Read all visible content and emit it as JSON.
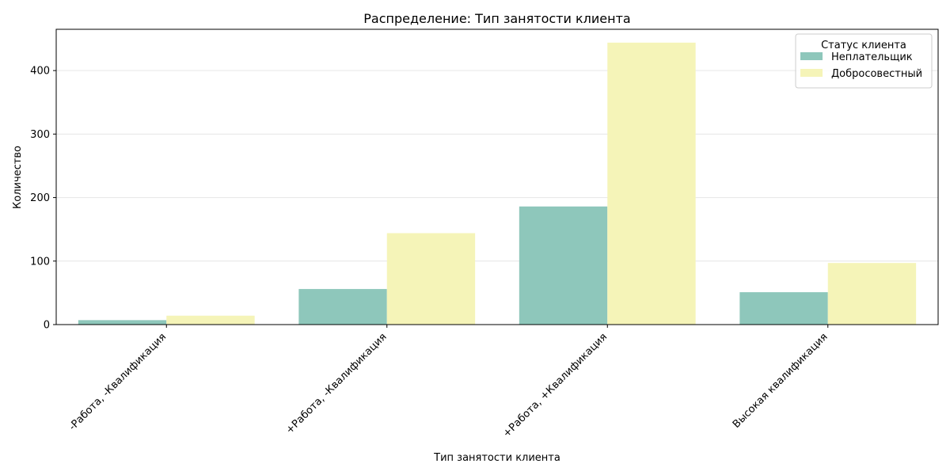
{
  "chart_data": {
    "type": "bar",
    "title": "Распределение: Тип занятости клиента",
    "xlabel": "Тип занятости клиента",
    "ylabel": "Количество",
    "categories": [
      "-Работа, -Квалификация",
      "+Работа, -Квалификация",
      "+Работа, +Квалификация",
      "Высокая квалификация"
    ],
    "series": [
      {
        "name": "Неплательщик",
        "values": [
          7,
          56,
          186,
          51
        ],
        "color": "#8ec7bb"
      },
      {
        "name": "Добросовестный",
        "values": [
          14,
          144,
          444,
          97
        ],
        "color": "#f5f4b8"
      }
    ],
    "yticks": [
      0,
      100,
      200,
      300,
      400
    ],
    "ylim": [
      0,
      465
    ],
    "grid": "y",
    "legend": {
      "title": "Статус клиента",
      "position": "top-right"
    }
  }
}
